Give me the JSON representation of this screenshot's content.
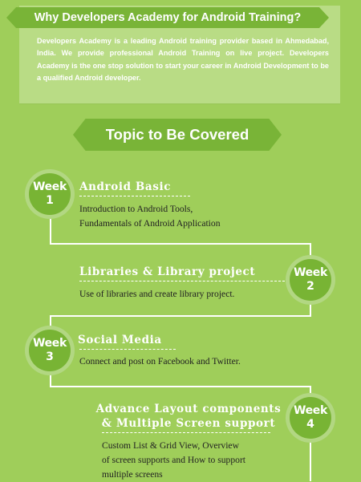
{
  "intro": {
    "title": "Why Developers Academy for Android Training?",
    "text": "Developers Academy is a leading Android training provider based in Ahmedabad, India. We provide professional Android Training on live project. Developers Academy is the one stop solution to start your career in Android Development to be a qualified Android developer."
  },
  "topic_banner": "Topic to Be Covered",
  "weeks": [
    {
      "badge_word": "Week",
      "badge_number": "1",
      "heading": "Android Basic",
      "desc_lines": [
        "Introduction to Android Tools,",
        "Fundamentals of Android Application"
      ]
    },
    {
      "badge_word": "Week",
      "badge_number": "2",
      "heading": "Libraries & Library project",
      "desc_lines": [
        "Use of libraries and create library project."
      ]
    },
    {
      "badge_word": "Week",
      "badge_number": "3",
      "heading": "Social Media",
      "desc_lines": [
        "Connect and post on Facebook and Twitter."
      ]
    },
    {
      "badge_word": "Week",
      "badge_number": "4",
      "heading_lines": [
        "Advance Layout components",
        "& Multiple Screen support"
      ],
      "desc_lines": [
        "Custom List & Grid View, Overview",
        "of screen supports and How to support",
        "multiple screens"
      ]
    }
  ],
  "colors": {
    "background": "#9fce5a",
    "panel": "#b9dc85",
    "accent": "#79b437",
    "text_dark": "#222222"
  }
}
